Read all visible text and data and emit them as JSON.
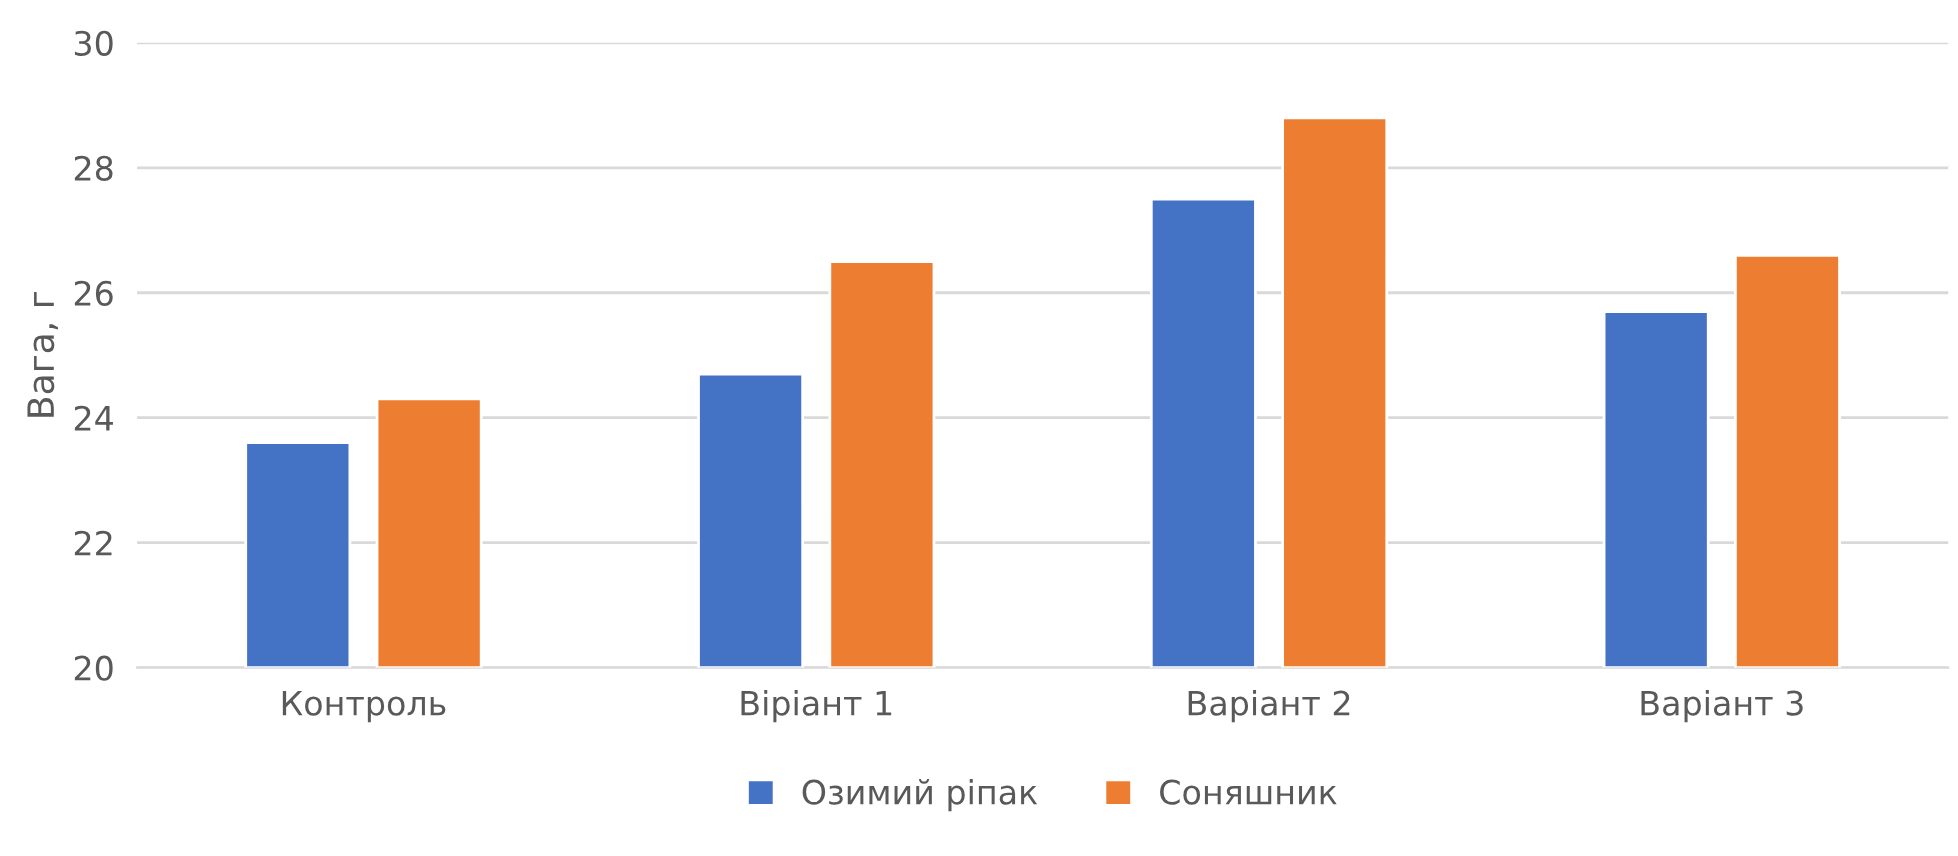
{
  "chart_data": {
    "type": "bar",
    "ylabel": "Вага, г",
    "categories": [
      "Контроль",
      "Віріант 1",
      "Варіант 2",
      "Варіант 3"
    ],
    "series": [
      {
        "name": "Озимий ріпак",
        "color": "#4472c4",
        "values": [
          23.6,
          24.7,
          27.5,
          25.7
        ]
      },
      {
        "name": "Соняшник",
        "color": "#ed7d31",
        "values": [
          24.3,
          26.5,
          28.8,
          26.6
        ]
      }
    ],
    "ylim": [
      20,
      30
    ],
    "yticks": [
      20,
      22,
      24,
      26,
      28,
      30
    ],
    "grid": "y",
    "legend": "bottom"
  }
}
